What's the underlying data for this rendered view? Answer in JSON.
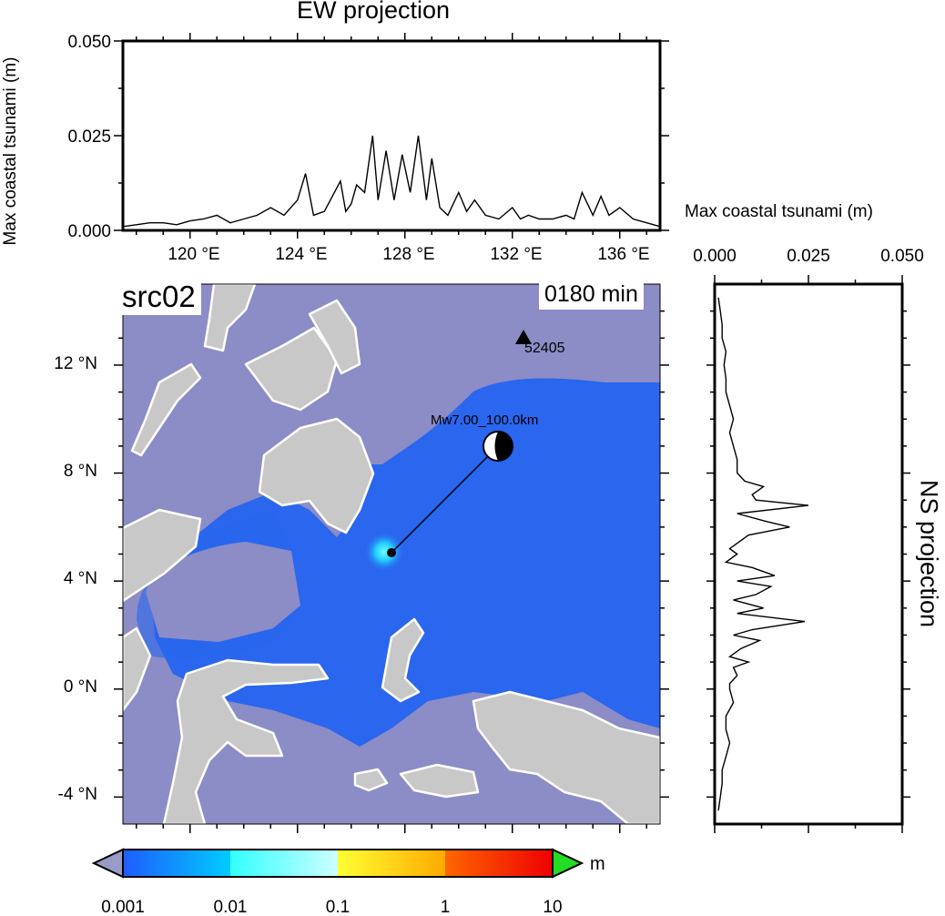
{
  "ew_panel": {
    "title": "EW projection",
    "ylabel": "Max coastal tsunami (m)",
    "yticks": [
      "0.000",
      "0.025",
      "0.050"
    ],
    "xticks": [
      "120 °E",
      "124 °E",
      "128 °E",
      "132 °E",
      "136 °E"
    ]
  },
  "ns_panel": {
    "title": "NS projection",
    "xlabel": "Max coastal tsunami (m)",
    "xticks": [
      "0.000",
      "0.025",
      "0.050"
    ]
  },
  "map": {
    "source_label": "src02",
    "time_label": "0180 min",
    "yticks": [
      "12 °N",
      "8 °N",
      "4 °N",
      "0 °N",
      "-4 °N"
    ],
    "epicenter_label": "Mw7.00_100.0km",
    "station_label": "52405",
    "colors": {
      "ocean_background": "#8c8cc6",
      "wave_blue": "#2a66ee",
      "land": "#c8c8c8",
      "coast": "#ffffff"
    }
  },
  "colorbar": {
    "unit": "m",
    "ticks": [
      "0.001",
      "0.01",
      "0.1",
      "1",
      "10"
    ],
    "colors": [
      "#1f5cff",
      "#33ffff",
      "#ffff33",
      "#ff2200"
    ],
    "under_color": "#9a9ac8",
    "over_color": "#22dd22"
  },
  "chart_data": [
    {
      "type": "line",
      "name": "EW projection",
      "x_unit": "degrees E",
      "xlim": [
        117.5,
        137.5
      ],
      "ylim": [
        0,
        0.05
      ],
      "x": [
        117.5,
        118,
        118.5,
        119,
        119.5,
        120,
        120.5,
        121,
        121.5,
        122,
        122.5,
        123,
        123.5,
        124,
        124.3,
        124.6,
        125,
        125.3,
        125.6,
        125.8,
        126,
        126.2,
        126.5,
        126.8,
        127,
        127.3,
        127.6,
        127.9,
        128.2,
        128.5,
        128.8,
        129,
        129.3,
        129.6,
        130,
        130.3,
        130.6,
        131,
        131.5,
        132,
        132.3,
        132.6,
        133,
        133.5,
        134,
        134.3,
        134.6,
        135,
        135.3,
        135.6,
        136,
        136.5,
        137,
        137.5
      ],
      "y": [
        0.001,
        0.0015,
        0.002,
        0.002,
        0.0015,
        0.0025,
        0.003,
        0.004,
        0.002,
        0.003,
        0.004,
        0.006,
        0.004,
        0.008,
        0.015,
        0.004,
        0.005,
        0.009,
        0.013,
        0.005,
        0.007,
        0.012,
        0.01,
        0.025,
        0.008,
        0.021,
        0.008,
        0.02,
        0.01,
        0.025,
        0.008,
        0.019,
        0.006,
        0.004,
        0.01,
        0.005,
        0.008,
        0.004,
        0.003,
        0.006,
        0.003,
        0.004,
        0.003,
        0.003,
        0.004,
        0.003,
        0.01,
        0.004,
        0.009,
        0.004,
        0.006,
        0.003,
        0.002,
        0.001
      ]
    },
    {
      "type": "line",
      "name": "NS projection",
      "y_unit": "degrees N",
      "ylim": [
        -5,
        15
      ],
      "xlim": [
        0,
        0.05
      ],
      "y": [
        14.5,
        14,
        13.5,
        13,
        12.5,
        12,
        11.5,
        11,
        10.5,
        10,
        9.5,
        9,
        8.5,
        8,
        7.7,
        7.5,
        7.2,
        7,
        6.8,
        6.5,
        6.2,
        6,
        5.7,
        5.5,
        5.2,
        5,
        4.7,
        4.5,
        4.2,
        4,
        3.8,
        3.5,
        3.3,
        3,
        2.8,
        2.5,
        2.2,
        2,
        1.8,
        1.5,
        1.2,
        1,
        0.8,
        0.5,
        0.2,
        0,
        -0.5,
        -1,
        -1.5,
        -2,
        -2.5,
        -3,
        -3.5,
        -4,
        -4.5
      ],
      "x": [
        0.001,
        0.0015,
        0.002,
        0.002,
        0.003,
        0.0025,
        0.003,
        0.003,
        0.004,
        0.005,
        0.004,
        0.005,
        0.006,
        0.006,
        0.008,
        0.013,
        0.01,
        0.011,
        0.025,
        0.006,
        0.014,
        0.02,
        0.009,
        0.007,
        0.004,
        0.006,
        0.003,
        0.01,
        0.016,
        0.006,
        0.015,
        0.011,
        0.005,
        0.013,
        0.006,
        0.024,
        0.01,
        0.005,
        0.012,
        0.007,
        0.004,
        0.009,
        0.005,
        0.006,
        0.004,
        0.004,
        0.005,
        0.003,
        0.003,
        0.004,
        0.003,
        0.002,
        0.002,
        0.0015,
        0.001
      ]
    }
  ]
}
